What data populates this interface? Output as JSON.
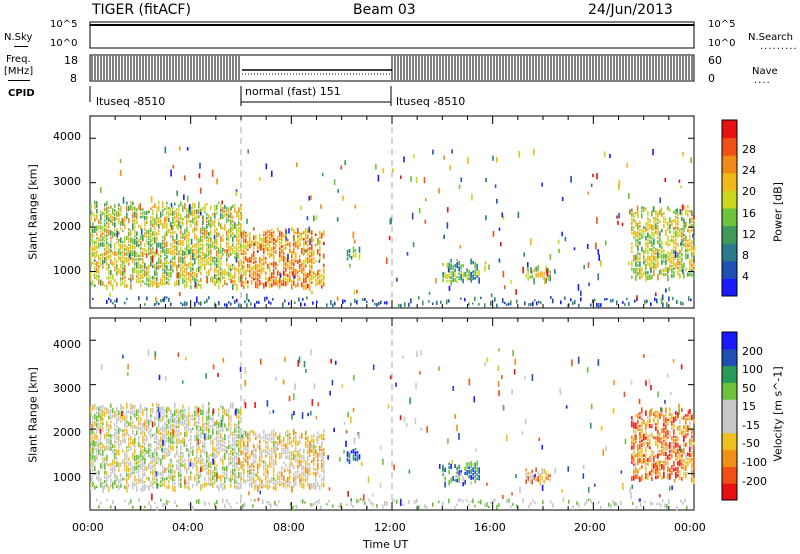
{
  "header": {
    "radar": "TIGER (fitACF)",
    "beam": "Beam 03",
    "date": "24/Jun/2013"
  },
  "left_labels": {
    "nsky": "N.Sky",
    "freq_line1": "Freq.",
    "freq_line2": "[MHz]",
    "cpid": "CPID"
  },
  "right_labels": {
    "nsearch": "N.Search",
    "nave": "Nave"
  },
  "strip_ticks": {
    "nsky_top": "10^5",
    "nsky_bottom": "10^0",
    "nsearch_top": "10^5",
    "nsearch_bottom": "10^0",
    "freq_top": "18",
    "freq_bottom": "8",
    "nave_top": "60",
    "nave_bottom": "0"
  },
  "cpid_segments": [
    {
      "label": "ltuseq -8510",
      "start": 0,
      "end": 6
    },
    {
      "label": "normal (fast) 151",
      "start": 6,
      "end": 12
    },
    {
      "label": "ltuseq -8510",
      "start": 12,
      "end": 24
    }
  ],
  "chart_data": [
    {
      "type": "heatmap",
      "name_printed": "",
      "ylabel": "Slant Range [km]",
      "xlabel": "",
      "xlim": [
        0,
        24
      ],
      "ylim": [
        180,
        4500
      ],
      "y_ticks": [
        "1000",
        "2000",
        "3000",
        "4000"
      ],
      "colorbar": {
        "label": "Power [dB]",
        "range": [
          0,
          32
        ],
        "ticks": [
          "4",
          "8",
          "12",
          "16",
          "20",
          "24",
          "28"
        ],
        "colors": [
          "#1a1aff",
          "#1e4fb5",
          "#2a7a8c",
          "#3f9a5a",
          "#6cc23a",
          "#c8d81e",
          "#f0b818",
          "#f08a18",
          "#f05018",
          "#e81010"
        ]
      },
      "echo_regions": [
        {
          "t": [
            0,
            6
          ],
          "r": [
            700,
            2600
          ],
          "level": 0.55
        },
        {
          "t": [
            6,
            9.3
          ],
          "r": [
            700,
            2000
          ],
          "level": 0.75
        },
        {
          "t": [
            10.2,
            10.7
          ],
          "r": [
            1300,
            1600
          ],
          "level": 0.4
        },
        {
          "t": [
            14,
            15.5
          ],
          "r": [
            800,
            1300
          ],
          "level": 0.35
        },
        {
          "t": [
            17.3,
            18.3
          ],
          "r": [
            850,
            1150
          ],
          "level": 0.5
        },
        {
          "t": [
            21.5,
            24
          ],
          "r": [
            900,
            2500
          ],
          "level": 0.55
        }
      ]
    },
    {
      "type": "heatmap",
      "name_printed": "",
      "ylabel": "Slant Range [km]",
      "xlabel": "Time UT",
      "xlim": [
        0,
        24
      ],
      "ylim": [
        180,
        4500
      ],
      "x_ticks": [
        "00:00",
        "04:00",
        "08:00",
        "12:00",
        "16:00",
        "20:00",
        "00:00"
      ],
      "y_ticks": [
        "1000",
        "2000",
        "3000",
        "4000"
      ],
      "colorbar": {
        "label": "Velocity [m s^-1]",
        "range": [
          -250,
          250
        ],
        "ticks": [
          "200",
          "100",
          "50",
          "15",
          "-15",
          "-50",
          "-100",
          "-200"
        ],
        "colors": [
          "#e81010",
          "#f05018",
          "#f09018",
          "#f0c020",
          "#c8c8c8",
          "#c8c8c8",
          "#6cc23a",
          "#2a9a5a",
          "#1e4fb5",
          "#1a1aff"
        ]
      },
      "echo_regions": [
        {
          "t": [
            0,
            6
          ],
          "r": [
            700,
            2600
          ],
          "level": 0.5
        },
        {
          "t": [
            6,
            9.3
          ],
          "r": [
            700,
            2000
          ],
          "level": 0.4
        },
        {
          "t": [
            10.2,
            10.7
          ],
          "r": [
            1300,
            1600
          ],
          "level": 0.95
        },
        {
          "t": [
            14,
            15.5
          ],
          "r": [
            800,
            1300
          ],
          "level": 0.8
        },
        {
          "t": [
            17.3,
            18.3
          ],
          "r": [
            850,
            1150
          ],
          "level": 0.3
        },
        {
          "t": [
            21.5,
            24
          ],
          "r": [
            900,
            2500
          ],
          "level": 0.2
        }
      ]
    }
  ]
}
